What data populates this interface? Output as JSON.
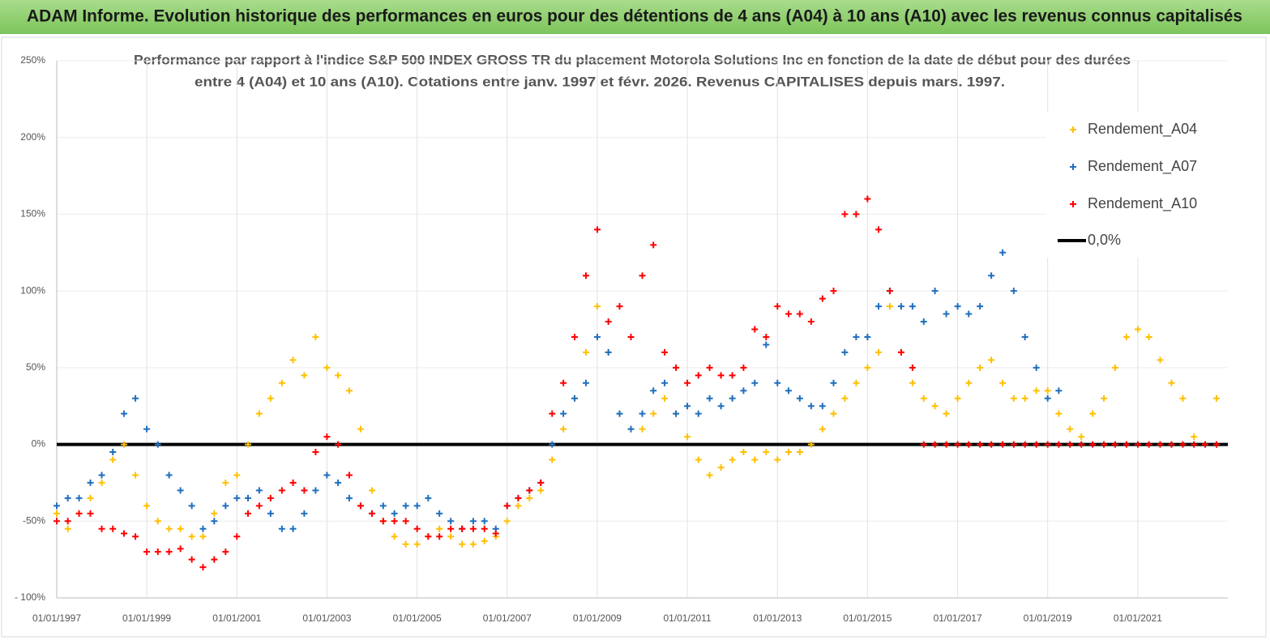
{
  "header": {
    "title": "ADAM Informe. Evolution historique des performances en euros pour des détentions de 4 ans (A04) à 10 ans (A10) avec les revenus connus capitalisés"
  },
  "chart_data": {
    "type": "scatter",
    "title": "Performance par rapport à l'indice S&P 500 INDEX GROSS TR  du placement Motorola Solutions Inc en fonction de la date de début pour des durées",
    "subtitle": "entre 4 (A04) et 10 ans (A10).  Cotations entre janv. 1997 et févr. 2026. Revenus  CAPITALISES depuis mars. 1997.",
    "x": [
      "1997-01-01",
      "1997-04-01",
      "1997-07-01",
      "1997-10-01",
      "1998-01-01",
      "1998-04-01",
      "1998-07-01",
      "1998-10-01",
      "1999-01-01",
      "1999-04-01",
      "1999-07-01",
      "1999-10-01",
      "2000-01-01",
      "2000-04-01",
      "2000-07-01",
      "2000-10-01",
      "2001-01-01",
      "2001-04-01",
      "2001-07-01",
      "2001-10-01",
      "2002-01-01",
      "2002-04-01",
      "2002-07-01",
      "2002-10-01",
      "2003-01-01",
      "2003-04-01",
      "2003-07-01",
      "2003-10-01",
      "2004-01-01",
      "2004-04-01",
      "2004-07-01",
      "2004-10-01",
      "2005-01-01",
      "2005-04-01",
      "2005-07-01",
      "2005-10-01",
      "2006-01-01",
      "2006-04-01",
      "2006-07-01",
      "2006-10-01",
      "2007-01-01",
      "2007-04-01",
      "2007-07-01",
      "2007-10-01",
      "2008-01-01",
      "2008-04-01",
      "2008-07-01",
      "2008-10-01",
      "2009-01-01",
      "2009-04-01",
      "2009-07-01",
      "2009-10-01",
      "2010-01-01",
      "2010-04-01",
      "2010-07-01",
      "2010-10-01",
      "2011-01-01",
      "2011-04-01",
      "2011-07-01",
      "2011-10-01",
      "2012-01-01",
      "2012-04-01",
      "2012-07-01",
      "2012-10-01",
      "2013-01-01",
      "2013-04-01",
      "2013-07-01",
      "2013-10-01",
      "2014-01-01",
      "2014-04-01",
      "2014-07-01",
      "2014-10-01",
      "2015-01-01",
      "2015-04-01",
      "2015-07-01",
      "2015-10-01",
      "2016-01-01",
      "2016-04-01",
      "2016-07-01",
      "2016-10-01",
      "2017-01-01",
      "2017-04-01",
      "2017-07-01",
      "2017-10-01",
      "2018-01-01",
      "2018-04-01",
      "2018-07-01",
      "2018-10-01",
      "2019-01-01",
      "2019-04-01",
      "2019-07-01",
      "2019-10-01",
      "2020-01-01",
      "2020-04-01",
      "2020-07-01",
      "2020-10-01",
      "2021-01-01",
      "2021-04-01",
      "2021-07-01",
      "2021-10-01",
      "2022-01-01",
      "2022-04-01",
      "2022-07-01",
      "2022-10-01"
    ],
    "series": [
      {
        "name": "Rendement_A04",
        "color": "#ffc000",
        "values": [
          -45,
          -55,
          -45,
          -35,
          -25,
          -10,
          0,
          -20,
          -40,
          -50,
          -55,
          -55,
          -60,
          -60,
          -45,
          -25,
          -20,
          0,
          20,
          30,
          40,
          55,
          45,
          70,
          50,
          45,
          35,
          10,
          -30,
          -50,
          -60,
          -65,
          -65,
          -60,
          -55,
          -60,
          -65,
          -65,
          -63,
          -60,
          -50,
          -40,
          -35,
          -30,
          -10,
          10,
          30,
          60,
          90,
          60,
          20,
          10,
          10,
          20,
          30,
          20,
          5,
          -10,
          -20,
          -15,
          -10,
          -5,
          -10,
          -5,
          -10,
          -5,
          -5,
          0,
          10,
          20,
          30,
          40,
          50,
          60,
          90,
          60,
          40,
          30,
          25,
          20,
          30,
          40,
          50,
          55,
          40,
          30,
          30,
          35,
          35,
          20,
          10,
          5,
          20,
          30,
          50,
          70,
          75,
          70,
          55,
          40,
          30,
          5,
          0,
          30
        ]
      },
      {
        "name": "Rendement_A07",
        "color": "#1f6fbf",
        "values": [
          -40,
          -35,
          -35,
          -25,
          -20,
          -5,
          20,
          30,
          10,
          0,
          -20,
          -30,
          -40,
          -55,
          -50,
          -40,
          -35,
          -35,
          -30,
          -45,
          -55,
          -55,
          -45,
          -30,
          -20,
          -25,
          -35,
          -40,
          -45,
          -40,
          -45,
          -40,
          -40,
          -35,
          -45,
          -50,
          -55,
          -50,
          -50,
          -55,
          -40,
          -35,
          -30,
          -25,
          0,
          20,
          30,
          40,
          70,
          60,
          20,
          10,
          20,
          35,
          40,
          20,
          25,
          20,
          30,
          25,
          30,
          35,
          40,
          65,
          40,
          35,
          30,
          25,
          25,
          40,
          60,
          70,
          70,
          90,
          100,
          90,
          90,
          80,
          100,
          85,
          90,
          85,
          90,
          110,
          125,
          100,
          70,
          50,
          30,
          35,
          null,
          null,
          null,
          null,
          null,
          null,
          null,
          null,
          null,
          null,
          null,
          null,
          null,
          null
        ]
      },
      {
        "name": "Rendement_A10",
        "color": "#ff0000",
        "values": [
          -50,
          -50,
          -45,
          -45,
          -55,
          -55,
          -58,
          -60,
          -70,
          -70,
          -70,
          -68,
          -75,
          -80,
          -75,
          -70,
          -60,
          -45,
          -40,
          -35,
          -30,
          -25,
          -30,
          -5,
          5,
          0,
          -20,
          -40,
          -45,
          -50,
          -50,
          -50,
          -55,
          -60,
          -60,
          -55,
          -55,
          -55,
          -55,
          -58,
          -40,
          -35,
          -30,
          -25,
          20,
          40,
          70,
          110,
          140,
          80,
          90,
          70,
          110,
          130,
          60,
          50,
          40,
          45,
          50,
          45,
          45,
          50,
          75,
          70,
          90,
          85,
          85,
          80,
          95,
          100,
          150,
          150,
          160,
          140,
          100,
          60,
          50,
          0,
          0,
          0,
          0,
          0,
          0,
          0,
          0,
          0,
          0,
          0,
          0,
          0,
          0,
          0,
          0,
          0,
          0,
          0,
          0,
          0,
          0,
          0,
          0,
          0,
          0,
          0
        ]
      }
    ],
    "reference_line": {
      "name": "0,0%",
      "value": 0,
      "color": "#000000"
    },
    "xlim": [
      "1997-01-01",
      "2023-01-01"
    ],
    "xticks": [
      {
        "value": "1997-01-01",
        "label": "01/01/1997"
      },
      {
        "value": "1999-01-01",
        "label": "01/01/1999"
      },
      {
        "value": "2001-01-01",
        "label": "01/01/2001"
      },
      {
        "value": "2003-01-01",
        "label": "01/01/2003"
      },
      {
        "value": "2005-01-01",
        "label": "01/01/2005"
      },
      {
        "value": "2007-01-01",
        "label": "01/01/2007"
      },
      {
        "value": "2009-01-01",
        "label": "01/01/2009"
      },
      {
        "value": "2011-01-01",
        "label": "01/01/2011"
      },
      {
        "value": "2013-01-01",
        "label": "01/01/2013"
      },
      {
        "value": "2015-01-01",
        "label": "01/01/2015"
      },
      {
        "value": "2017-01-01",
        "label": "01/01/2017"
      },
      {
        "value": "2019-01-01",
        "label": "01/01/2019"
      },
      {
        "value": "2021-01-01",
        "label": "01/01/2021"
      }
    ],
    "ylim": [
      -100,
      250
    ],
    "yticks": [
      {
        "value": -100,
        "label": "- 100%"
      },
      {
        "value": -50,
        "label": "-50%"
      },
      {
        "value": 0,
        "label": "0%"
      },
      {
        "value": 50,
        "label": "50%"
      },
      {
        "value": 100,
        "label": "100%"
      },
      {
        "value": 150,
        "label": "150%"
      },
      {
        "value": 200,
        "label": "200%"
      },
      {
        "value": 250,
        "label": "250%"
      }
    ],
    "grid": true,
    "legend": "upper right"
  }
}
